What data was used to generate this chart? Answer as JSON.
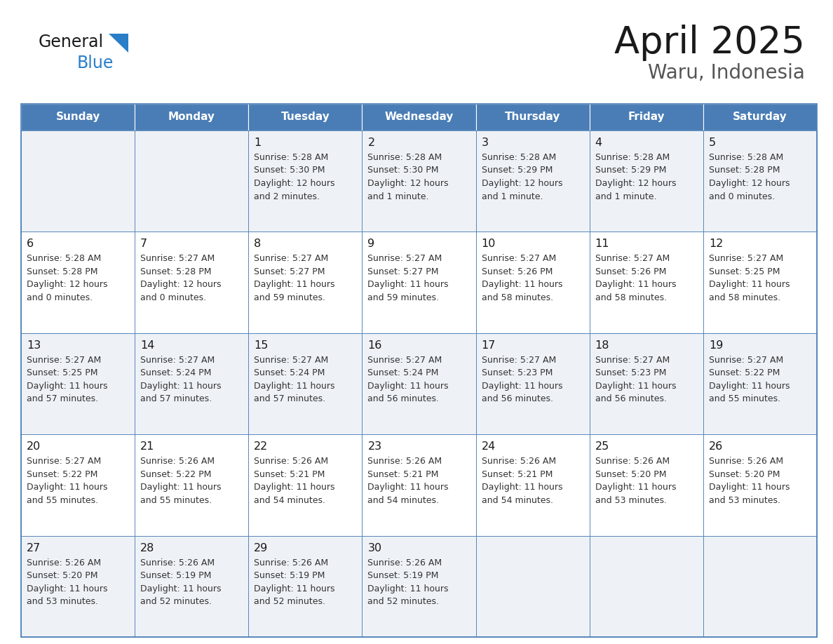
{
  "title": "April 2025",
  "subtitle": "Waru, Indonesia",
  "days_of_week": [
    "Sunday",
    "Monday",
    "Tuesday",
    "Wednesday",
    "Thursday",
    "Friday",
    "Saturday"
  ],
  "header_bg": "#4a7db5",
  "header_text": "#ffffff",
  "row0_bg": "#eef2f7",
  "row1_bg": "#ffffff",
  "border_color": "#4a7db5",
  "title_color": "#1a1a1a",
  "subtitle_color": "#555555",
  "cell_text_color": "#333333",
  "day_num_color": "#1a1a1a",
  "logo_black": "#1a1a1a",
  "logo_blue": "#2a7ec8",
  "logo_triangle": "#2a7ec8",
  "calendar_data": [
    [
      null,
      null,
      {
        "day": "1",
        "sunrise": "5:28 AM",
        "sunset": "5:30 PM",
        "daylight_a": "Daylight: 12 hours",
        "daylight_b": "and 2 minutes."
      },
      {
        "day": "2",
        "sunrise": "5:28 AM",
        "sunset": "5:30 PM",
        "daylight_a": "Daylight: 12 hours",
        "daylight_b": "and 1 minute."
      },
      {
        "day": "3",
        "sunrise": "5:28 AM",
        "sunset": "5:29 PM",
        "daylight_a": "Daylight: 12 hours",
        "daylight_b": "and 1 minute."
      },
      {
        "day": "4",
        "sunrise": "5:28 AM",
        "sunset": "5:29 PM",
        "daylight_a": "Daylight: 12 hours",
        "daylight_b": "and 1 minute."
      },
      {
        "day": "5",
        "sunrise": "5:28 AM",
        "sunset": "5:28 PM",
        "daylight_a": "Daylight: 12 hours",
        "daylight_b": "and 0 minutes."
      }
    ],
    [
      {
        "day": "6",
        "sunrise": "5:28 AM",
        "sunset": "5:28 PM",
        "daylight_a": "Daylight: 12 hours",
        "daylight_b": "and 0 minutes."
      },
      {
        "day": "7",
        "sunrise": "5:27 AM",
        "sunset": "5:28 PM",
        "daylight_a": "Daylight: 12 hours",
        "daylight_b": "and 0 minutes."
      },
      {
        "day": "8",
        "sunrise": "5:27 AM",
        "sunset": "5:27 PM",
        "daylight_a": "Daylight: 11 hours",
        "daylight_b": "and 59 minutes."
      },
      {
        "day": "9",
        "sunrise": "5:27 AM",
        "sunset": "5:27 PM",
        "daylight_a": "Daylight: 11 hours",
        "daylight_b": "and 59 minutes."
      },
      {
        "day": "10",
        "sunrise": "5:27 AM",
        "sunset": "5:26 PM",
        "daylight_a": "Daylight: 11 hours",
        "daylight_b": "and 58 minutes."
      },
      {
        "day": "11",
        "sunrise": "5:27 AM",
        "sunset": "5:26 PM",
        "daylight_a": "Daylight: 11 hours",
        "daylight_b": "and 58 minutes."
      },
      {
        "day": "12",
        "sunrise": "5:27 AM",
        "sunset": "5:25 PM",
        "daylight_a": "Daylight: 11 hours",
        "daylight_b": "and 58 minutes."
      }
    ],
    [
      {
        "day": "13",
        "sunrise": "5:27 AM",
        "sunset": "5:25 PM",
        "daylight_a": "Daylight: 11 hours",
        "daylight_b": "and 57 minutes."
      },
      {
        "day": "14",
        "sunrise": "5:27 AM",
        "sunset": "5:24 PM",
        "daylight_a": "Daylight: 11 hours",
        "daylight_b": "and 57 minutes."
      },
      {
        "day": "15",
        "sunrise": "5:27 AM",
        "sunset": "5:24 PM",
        "daylight_a": "Daylight: 11 hours",
        "daylight_b": "and 57 minutes."
      },
      {
        "day": "16",
        "sunrise": "5:27 AM",
        "sunset": "5:24 PM",
        "daylight_a": "Daylight: 11 hours",
        "daylight_b": "and 56 minutes."
      },
      {
        "day": "17",
        "sunrise": "5:27 AM",
        "sunset": "5:23 PM",
        "daylight_a": "Daylight: 11 hours",
        "daylight_b": "and 56 minutes."
      },
      {
        "day": "18",
        "sunrise": "5:27 AM",
        "sunset": "5:23 PM",
        "daylight_a": "Daylight: 11 hours",
        "daylight_b": "and 56 minutes."
      },
      {
        "day": "19",
        "sunrise": "5:27 AM",
        "sunset": "5:22 PM",
        "daylight_a": "Daylight: 11 hours",
        "daylight_b": "and 55 minutes."
      }
    ],
    [
      {
        "day": "20",
        "sunrise": "5:27 AM",
        "sunset": "5:22 PM",
        "daylight_a": "Daylight: 11 hours",
        "daylight_b": "and 55 minutes."
      },
      {
        "day": "21",
        "sunrise": "5:26 AM",
        "sunset": "5:22 PM",
        "daylight_a": "Daylight: 11 hours",
        "daylight_b": "and 55 minutes."
      },
      {
        "day": "22",
        "sunrise": "5:26 AM",
        "sunset": "5:21 PM",
        "daylight_a": "Daylight: 11 hours",
        "daylight_b": "and 54 minutes."
      },
      {
        "day": "23",
        "sunrise": "5:26 AM",
        "sunset": "5:21 PM",
        "daylight_a": "Daylight: 11 hours",
        "daylight_b": "and 54 minutes."
      },
      {
        "day": "24",
        "sunrise": "5:26 AM",
        "sunset": "5:21 PM",
        "daylight_a": "Daylight: 11 hours",
        "daylight_b": "and 54 minutes."
      },
      {
        "day": "25",
        "sunrise": "5:26 AM",
        "sunset": "5:20 PM",
        "daylight_a": "Daylight: 11 hours",
        "daylight_b": "and 53 minutes."
      },
      {
        "day": "26",
        "sunrise": "5:26 AM",
        "sunset": "5:20 PM",
        "daylight_a": "Daylight: 11 hours",
        "daylight_b": "and 53 minutes."
      }
    ],
    [
      {
        "day": "27",
        "sunrise": "5:26 AM",
        "sunset": "5:20 PM",
        "daylight_a": "Daylight: 11 hours",
        "daylight_b": "and 53 minutes."
      },
      {
        "day": "28",
        "sunrise": "5:26 AM",
        "sunset": "5:19 PM",
        "daylight_a": "Daylight: 11 hours",
        "daylight_b": "and 52 minutes."
      },
      {
        "day": "29",
        "sunrise": "5:26 AM",
        "sunset": "5:19 PM",
        "daylight_a": "Daylight: 11 hours",
        "daylight_b": "and 52 minutes."
      },
      {
        "day": "30",
        "sunrise": "5:26 AM",
        "sunset": "5:19 PM",
        "daylight_a": "Daylight: 11 hours",
        "daylight_b": "and 52 minutes."
      },
      null,
      null,
      null
    ]
  ]
}
